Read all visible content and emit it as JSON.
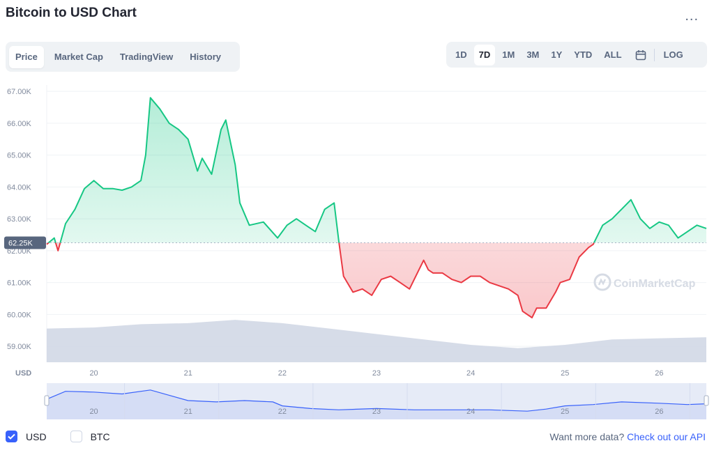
{
  "header": {
    "title": "Bitcoin to USD Chart",
    "more_label": "..."
  },
  "tabs": [
    {
      "label": "Price",
      "active": true
    },
    {
      "label": "Market Cap",
      "active": false
    },
    {
      "label": "TradingView",
      "active": false
    },
    {
      "label": "History",
      "active": false
    }
  ],
  "ranges": [
    {
      "label": "1D",
      "active": false
    },
    {
      "label": "7D",
      "active": true
    },
    {
      "label": "1M",
      "active": false
    },
    {
      "label": "3M",
      "active": false
    },
    {
      "label": "1Y",
      "active": false
    },
    {
      "label": "YTD",
      "active": false
    },
    {
      "label": "ALL",
      "active": false
    }
  ],
  "log_label": "LOG",
  "currency_label": "USD",
  "watermark": "CoinMarketCap",
  "legend": [
    {
      "label": "USD",
      "checked": true
    },
    {
      "label": "BTC",
      "checked": false
    }
  ],
  "footer": {
    "prefix": "Want more data?",
    "link": "Check out our API"
  },
  "colors": {
    "up": "#16c784",
    "down": "#ea3943",
    "volume": "#cfd6e4",
    "nav_line": "#3861fb"
  },
  "chart_data": {
    "type": "line",
    "title": "Bitcoin to USD Chart",
    "ylabel": "USD",
    "ylim": [
      58500,
      67200
    ],
    "yticks": [
      {
        "value": 67000,
        "label": "67.00K"
      },
      {
        "value": 66000,
        "label": "66.00K"
      },
      {
        "value": 65000,
        "label": "65.00K"
      },
      {
        "value": 64000,
        "label": "64.00K"
      },
      {
        "value": 63000,
        "label": "63.00K"
      },
      {
        "value": 62000,
        "label": "62.00K"
      },
      {
        "value": 61000,
        "label": "61.00K"
      },
      {
        "value": 60000,
        "label": "60.00K"
      },
      {
        "value": 59000,
        "label": "59.00K"
      }
    ],
    "xlim": [
      19.5,
      26.5
    ],
    "xticks": [
      {
        "value": 20,
        "label": "20"
      },
      {
        "value": 21,
        "label": "21"
      },
      {
        "value": 22,
        "label": "22"
      },
      {
        "value": 23,
        "label": "23"
      },
      {
        "value": 24,
        "label": "24"
      },
      {
        "value": 25,
        "label": "25"
      },
      {
        "value": 26,
        "label": "26"
      }
    ],
    "baseline": {
      "value": 62250,
      "label": "62.25K"
    },
    "price": {
      "x": [
        19.5,
        19.58,
        19.62,
        19.7,
        19.8,
        19.9,
        20.0,
        20.1,
        20.2,
        20.3,
        20.4,
        20.5,
        20.55,
        20.6,
        20.7,
        20.8,
        20.9,
        21.0,
        21.1,
        21.15,
        21.25,
        21.35,
        21.4,
        21.5,
        21.55,
        21.65,
        21.8,
        21.95,
        22.05,
        22.15,
        22.25,
        22.35,
        22.45,
        22.55,
        22.6,
        22.65,
        22.75,
        22.85,
        22.95,
        23.05,
        23.15,
        23.25,
        23.35,
        23.45,
        23.5,
        23.55,
        23.6,
        23.7,
        23.8,
        23.9,
        24.0,
        24.1,
        24.2,
        24.3,
        24.4,
        24.5,
        24.55,
        24.65,
        24.7,
        24.8,
        24.9,
        24.95,
        25.05,
        25.15,
        25.25,
        25.3,
        25.4,
        25.5,
        25.6,
        25.7,
        25.8,
        25.9,
        26.0,
        26.1,
        26.2,
        26.3,
        26.4,
        26.5
      ],
      "values": [
        62200,
        62400,
        62000,
        62850,
        63300,
        63950,
        64200,
        63950,
        63950,
        63900,
        64000,
        64200,
        65000,
        66800,
        66450,
        66000,
        65800,
        65500,
        64500,
        64900,
        64400,
        65800,
        66100,
        64700,
        63500,
        62800,
        62900,
        62400,
        62800,
        63000,
        62800,
        62600,
        63300,
        63500,
        62300,
        61200,
        60700,
        60800,
        60600,
        61100,
        61200,
        61000,
        60800,
        61400,
        61700,
        61400,
        61300,
        61300,
        61100,
        61000,
        61200,
        61200,
        61000,
        60900,
        60800,
        60600,
        60100,
        59900,
        60200,
        60200,
        60700,
        61000,
        61100,
        61800,
        62100,
        62200,
        62800,
        63000,
        63300,
        63600,
        63000,
        62700,
        62900,
        62800,
        62400,
        62600,
        62800,
        62700
      ]
    },
    "volume": {
      "x": [
        19.5,
        20.0,
        20.5,
        21.0,
        21.5,
        22.0,
        22.5,
        23.0,
        23.5,
        24.0,
        24.5,
        25.0,
        25.5,
        26.0,
        26.5
      ],
      "values": [
        0.62,
        0.64,
        0.7,
        0.72,
        0.78,
        0.72,
        0.62,
        0.52,
        0.42,
        0.32,
        0.26,
        0.32,
        0.42,
        0.44,
        0.46
      ]
    },
    "navigator": {
      "x": [
        19.5,
        19.7,
        20.0,
        20.3,
        20.6,
        20.8,
        21.0,
        21.3,
        21.6,
        21.9,
        22.0,
        22.3,
        22.6,
        23.0,
        23.4,
        23.8,
        24.2,
        24.6,
        24.8,
        25.0,
        25.3,
        25.6,
        26.0,
        26.3,
        26.5
      ],
      "values": [
        0.55,
        0.85,
        0.82,
        0.75,
        0.9,
        0.7,
        0.5,
        0.45,
        0.5,
        0.45,
        0.3,
        0.2,
        0.15,
        0.2,
        0.15,
        0.15,
        0.15,
        0.1,
        0.18,
        0.3,
        0.35,
        0.45,
        0.4,
        0.35,
        0.38
      ]
    }
  }
}
